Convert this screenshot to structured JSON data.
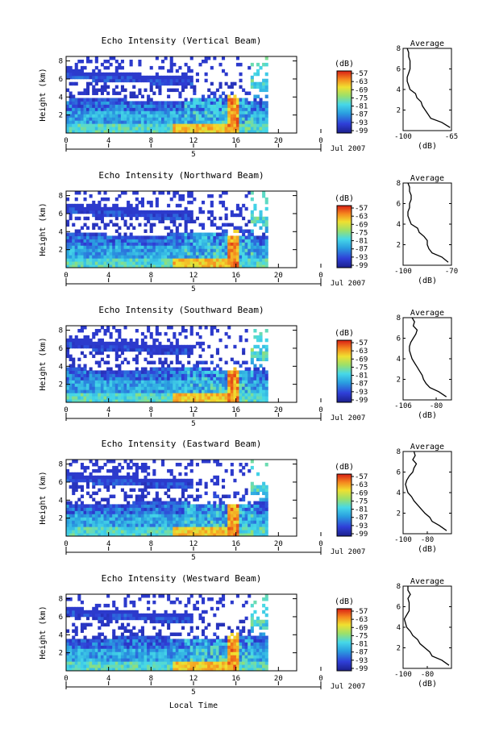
{
  "figure": {
    "xlabel": "Local Time",
    "date_label": "Jul 2007"
  },
  "chart_data": [
    {
      "type": "heatmap",
      "title": "Echo Intensity (Vertical Beam)",
      "ylabel": "Height (km)",
      "xlabel": "Local Time",
      "x_ticks": [
        "0",
        "4",
        "8",
        "12",
        "16",
        "20",
        "0"
      ],
      "x_range": [
        0,
        24
      ],
      "y_ticks": [
        "2",
        "4",
        "6",
        "8"
      ],
      "y_range": [
        0,
        8.5
      ],
      "day_label": "5",
      "date_label": "Jul 2007",
      "colorbar": {
        "unit": "(dB)",
        "ticks": [
          "-57",
          "-63",
          "-69",
          "-75",
          "-81",
          "-87",
          "-93",
          "-99"
        ]
      },
      "average_profile": {
        "title": "Average",
        "xlabel": "(dB)",
        "x_range": [
          -100,
          -65
        ],
        "x_ticks": [
          "-100",
          "-65"
        ],
        "y_range": [
          0,
          8
        ],
        "y_ticks": [
          "2",
          "4",
          "6",
          "8"
        ],
        "height": [
          0.3,
          0.8,
          1.2,
          1.6,
          2,
          2.4,
          2.8,
          3.2,
          3.6,
          4,
          4.4,
          4.8,
          5.2,
          5.6,
          6,
          6.4,
          6.8,
          7.2,
          7.6,
          8
        ],
        "values": [
          -66,
          -72,
          -80,
          -82,
          -84,
          -86,
          -87,
          -90,
          -91,
          -95,
          -96,
          -97,
          -97,
          -96,
          -95,
          -95,
          -95,
          -96,
          -96,
          -97
        ]
      }
    },
    {
      "type": "heatmap",
      "title": "Echo Intensity (Northward Beam)",
      "ylabel": "Height (km)",
      "xlabel": "Local Time",
      "x_ticks": [
        "0",
        "4",
        "8",
        "12",
        "16",
        "20",
        "0"
      ],
      "x_range": [
        0,
        24
      ],
      "y_ticks": [
        "2",
        "4",
        "6",
        "8"
      ],
      "y_range": [
        0,
        8.5
      ],
      "day_label": "5",
      "date_label": "Jul 2007",
      "colorbar": {
        "unit": "(dB)",
        "ticks": [
          "-57",
          "-63",
          "-69",
          "-75",
          "-81",
          "-87",
          "-93",
          "-99"
        ]
      },
      "average_profile": {
        "title": "Average",
        "xlabel": "(dB)",
        "x_range": [
          -100,
          -70
        ],
        "x_ticks": [
          "-100",
          "-70"
        ],
        "y_range": [
          0,
          8
        ],
        "y_ticks": [
          "2",
          "4",
          "6",
          "8"
        ],
        "height": [
          0.3,
          0.8,
          1.2,
          1.6,
          2,
          2.4,
          2.8,
          3.2,
          3.6,
          4,
          4.4,
          4.8,
          5.2,
          5.6,
          6,
          6.4,
          6.8,
          7.2,
          7.6,
          8
        ],
        "values": [
          -72,
          -76,
          -82,
          -84,
          -85,
          -85,
          -87,
          -90,
          -91,
          -95,
          -96,
          -97,
          -97,
          -96,
          -96,
          -95,
          -95,
          -96,
          -96,
          -97
        ]
      }
    },
    {
      "type": "heatmap",
      "title": "Echo Intensity (Southward Beam)",
      "ylabel": "Height (km)",
      "xlabel": "Local Time",
      "x_ticks": [
        "0",
        "4",
        "8",
        "12",
        "16",
        "20",
        "0"
      ],
      "x_range": [
        0,
        24
      ],
      "y_ticks": [
        "2",
        "4",
        "6",
        "8"
      ],
      "y_range": [
        0,
        8.5
      ],
      "day_label": "5",
      "date_label": "Jul 2007",
      "colorbar": {
        "unit": "(dB)",
        "ticks": [
          "-57",
          "-63",
          "-69",
          "-75",
          "-81",
          "-87",
          "-93",
          "-99"
        ]
      },
      "average_profile": {
        "title": "Average",
        "xlabel": "(dB)",
        "x_range": [
          -106,
          -68
        ],
        "x_ticks": [
          "-106",
          "-80"
        ],
        "y_range": [
          0,
          8
        ],
        "y_ticks": [
          "2",
          "4",
          "6",
          "8"
        ],
        "height": [
          0.3,
          0.8,
          1.2,
          1.6,
          2,
          2.4,
          2.8,
          3.2,
          3.6,
          4,
          4.4,
          4.8,
          5.2,
          5.6,
          6,
          6.4,
          6.8,
          7.2,
          7.6,
          8
        ],
        "values": [
          -72,
          -78,
          -85,
          -88,
          -90,
          -91,
          -93,
          -95,
          -97,
          -99,
          -100,
          -101,
          -101,
          -100,
          -98,
          -96,
          -95,
          -98,
          -97,
          -99
        ]
      }
    },
    {
      "type": "heatmap",
      "title": "Echo Intensity (Eastward Beam)",
      "ylabel": "Height (km)",
      "xlabel": "Local Time",
      "x_ticks": [
        "0",
        "4",
        "8",
        "12",
        "16",
        "20",
        "0"
      ],
      "x_range": [
        0,
        24
      ],
      "y_ticks": [
        "2",
        "4",
        "6",
        "8"
      ],
      "y_range": [
        0,
        8.5
      ],
      "day_label": "5",
      "date_label": "Jul 2007",
      "colorbar": {
        "unit": "(dB)",
        "ticks": [
          "-57",
          "-63",
          "-69",
          "-75",
          "-81",
          "-87",
          "-93",
          "-99"
        ]
      },
      "average_profile": {
        "title": "Average",
        "xlabel": "(dB)",
        "x_range": [
          -100,
          -60
        ],
        "x_ticks": [
          "-100",
          "-80"
        ],
        "y_range": [
          0,
          8
        ],
        "y_ticks": [
          "2",
          "4",
          "6",
          "8"
        ],
        "height": [
          0.3,
          0.8,
          1.2,
          1.6,
          2,
          2.4,
          2.8,
          3.2,
          3.6,
          4,
          4.4,
          4.8,
          5.2,
          5.6,
          6,
          6.4,
          6.8,
          7.2,
          7.6,
          8
        ],
        "values": [
          -64,
          -70,
          -76,
          -78,
          -82,
          -85,
          -88,
          -91,
          -93,
          -96,
          -97,
          -98,
          -97,
          -95,
          -92,
          -91,
          -89,
          -92,
          -90,
          -91
        ]
      }
    },
    {
      "type": "heatmap",
      "title": "Echo Intensity (Westward Beam)",
      "ylabel": "Height (km)",
      "xlabel": "Local Time",
      "x_ticks": [
        "0",
        "4",
        "8",
        "12",
        "16",
        "20",
        "0"
      ],
      "x_range": [
        0,
        24
      ],
      "y_ticks": [
        "2",
        "4",
        "6",
        "8"
      ],
      "y_range": [
        0,
        8.5
      ],
      "day_label": "5",
      "date_label": "Jul 2007",
      "colorbar": {
        "unit": "(dB)",
        "ticks": [
          "-57",
          "-63",
          "-69",
          "-75",
          "-81",
          "-87",
          "-93",
          "-99"
        ]
      },
      "average_profile": {
        "title": "Average",
        "xlabel": "(dB)",
        "x_range": [
          -100,
          -60
        ],
        "x_ticks": [
          "-100",
          "-80"
        ],
        "y_range": [
          0,
          8
        ],
        "y_ticks": [
          "2",
          "4",
          "6",
          "8"
        ],
        "height": [
          0.3,
          0.8,
          1.2,
          1.6,
          2,
          2.4,
          2.8,
          3.2,
          3.6,
          4,
          4.4,
          4.8,
          5.2,
          5.6,
          6,
          6.4,
          6.8,
          7.2,
          7.6,
          8
        ],
        "values": [
          -62,
          -68,
          -76,
          -78,
          -82,
          -86,
          -88,
          -92,
          -94,
          -97,
          -98,
          -99,
          -97,
          -95,
          -95,
          -95,
          -96,
          -94,
          -96,
          -96
        ]
      }
    }
  ]
}
